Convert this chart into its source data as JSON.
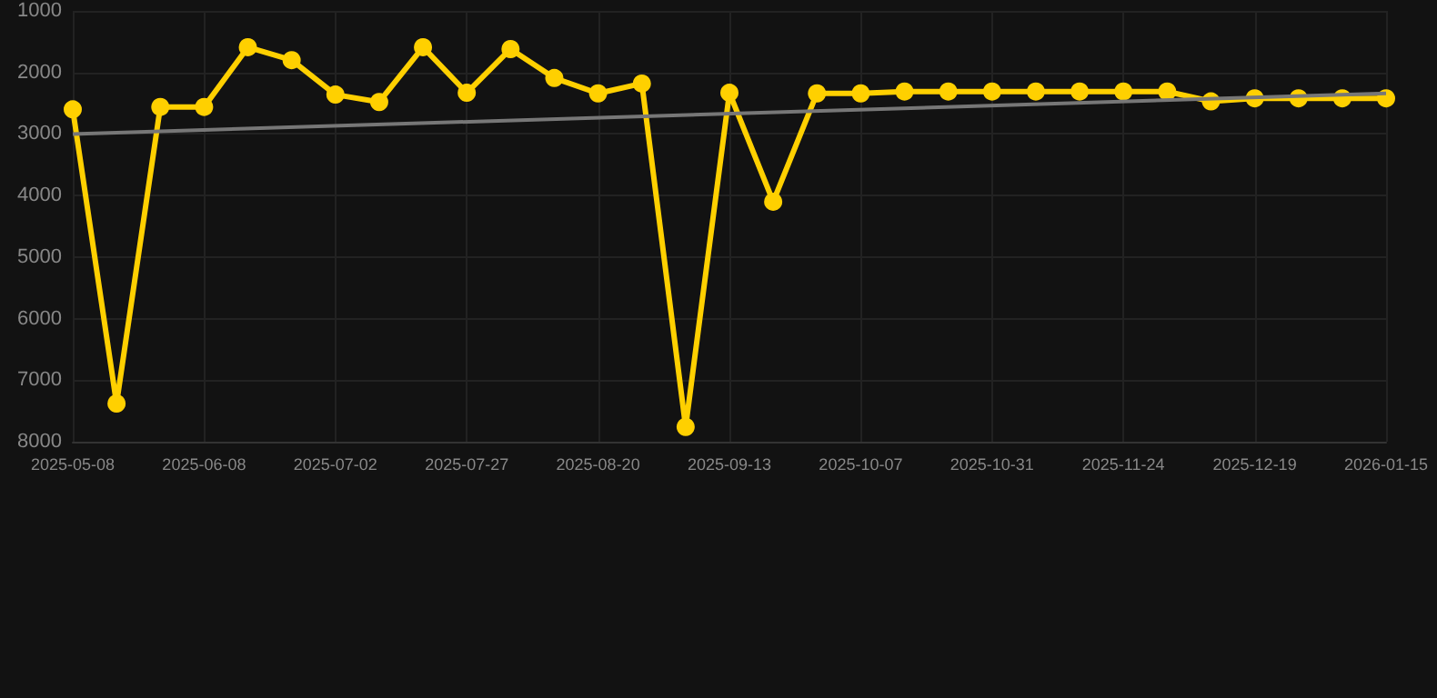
{
  "chart_data": {
    "type": "line",
    "categories": [
      "2025-05-08",
      null,
      null,
      "2025-06-08",
      null,
      null,
      "2025-07-02",
      null,
      null,
      "2025-07-27",
      null,
      null,
      "2025-08-20",
      null,
      null,
      "2025-09-13",
      null,
      null,
      "2025-10-07",
      null,
      null,
      "2025-10-31",
      null,
      null,
      "2025-11-24",
      null,
      null,
      "2025-12-19",
      null,
      null,
      "2026-01-15"
    ],
    "series": [
      {
        "color": "#ffd000",
        "marker": "circle",
        "values": [
          2600,
          7380,
          2560,
          2560,
          1590,
          1800,
          2360,
          2480,
          1590,
          2330,
          1620,
          2090,
          2340,
          2180,
          7760,
          2330,
          4100,
          2340,
          2340,
          2310,
          2310,
          2310,
          2310,
          2310,
          2310,
          2310,
          2470,
          2420,
          2420,
          2420,
          2420
        ]
      },
      {
        "color": "#777777",
        "marker": "none",
        "values": [
          3000,
          null,
          null,
          null,
          null,
          null,
          null,
          null,
          null,
          null,
          null,
          null,
          null,
          null,
          null,
          null,
          null,
          null,
          null,
          null,
          null,
          null,
          null,
          null,
          null,
          null,
          null,
          null,
          null,
          null,
          2340
        ]
      }
    ],
    "ylim": [
      8000,
      1000
    ],
    "yticks": [
      1000,
      2000,
      3000,
      4000,
      5000,
      6000,
      7000,
      8000
    ],
    "grid": true
  }
}
